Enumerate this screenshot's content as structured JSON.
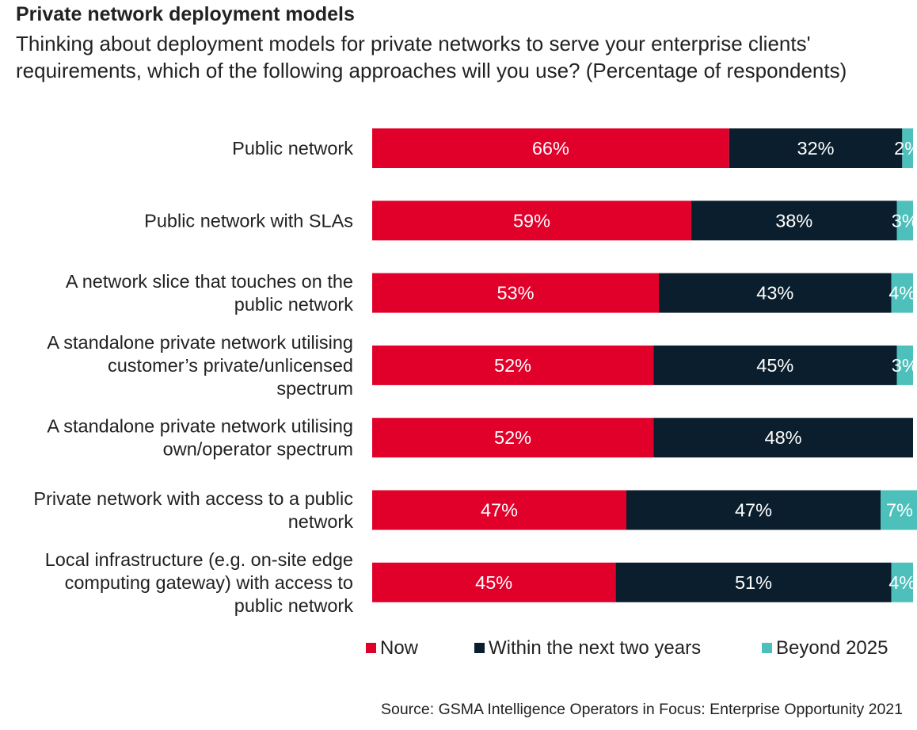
{
  "title": "Private network deployment models",
  "subtitle": "Thinking about deployment models for private networks to serve your enterprise clients' requirements, which of the following approaches will you use? (Percentage of respondents)",
  "source": "Source: GSMA Intelligence Operators in Focus: Enterprise Opportunity 2021",
  "colors": {
    "now": "#E1002A",
    "within": "#0A1E2D",
    "beyond": "#4DC0BB",
    "label_text": "#ffffff"
  },
  "chart_data": {
    "type": "bar",
    "orientation": "horizontal",
    "stacked": true,
    "categories": [
      [
        "Public network"
      ],
      [
        "Public network with SLAs"
      ],
      [
        "A network slice that touches on the",
        "public network"
      ],
      [
        "A standalone private network utilising",
        "customer’s private/unlicensed",
        "spectrum"
      ],
      [
        "A standalone private network utilising",
        "own/operator spectrum"
      ],
      [
        "Private network with access to a public",
        "network"
      ],
      [
        "Local infrastructure (e.g. on-site edge",
        "computing gateway) with access to",
        "public network"
      ]
    ],
    "series": [
      {
        "name": "Now",
        "key": "now",
        "values": [
          66,
          59,
          53,
          52,
          52,
          47,
          45
        ]
      },
      {
        "name": "Within the next two years",
        "key": "within",
        "values": [
          32,
          38,
          43,
          45,
          48,
          47,
          51
        ]
      },
      {
        "name": "Beyond 2025",
        "key": "beyond",
        "values": [
          2,
          3,
          4,
          3,
          0,
          7,
          4
        ]
      }
    ],
    "xlim": [
      0,
      100
    ],
    "unit": "%",
    "legend_position": "bottom",
    "grid": false
  }
}
